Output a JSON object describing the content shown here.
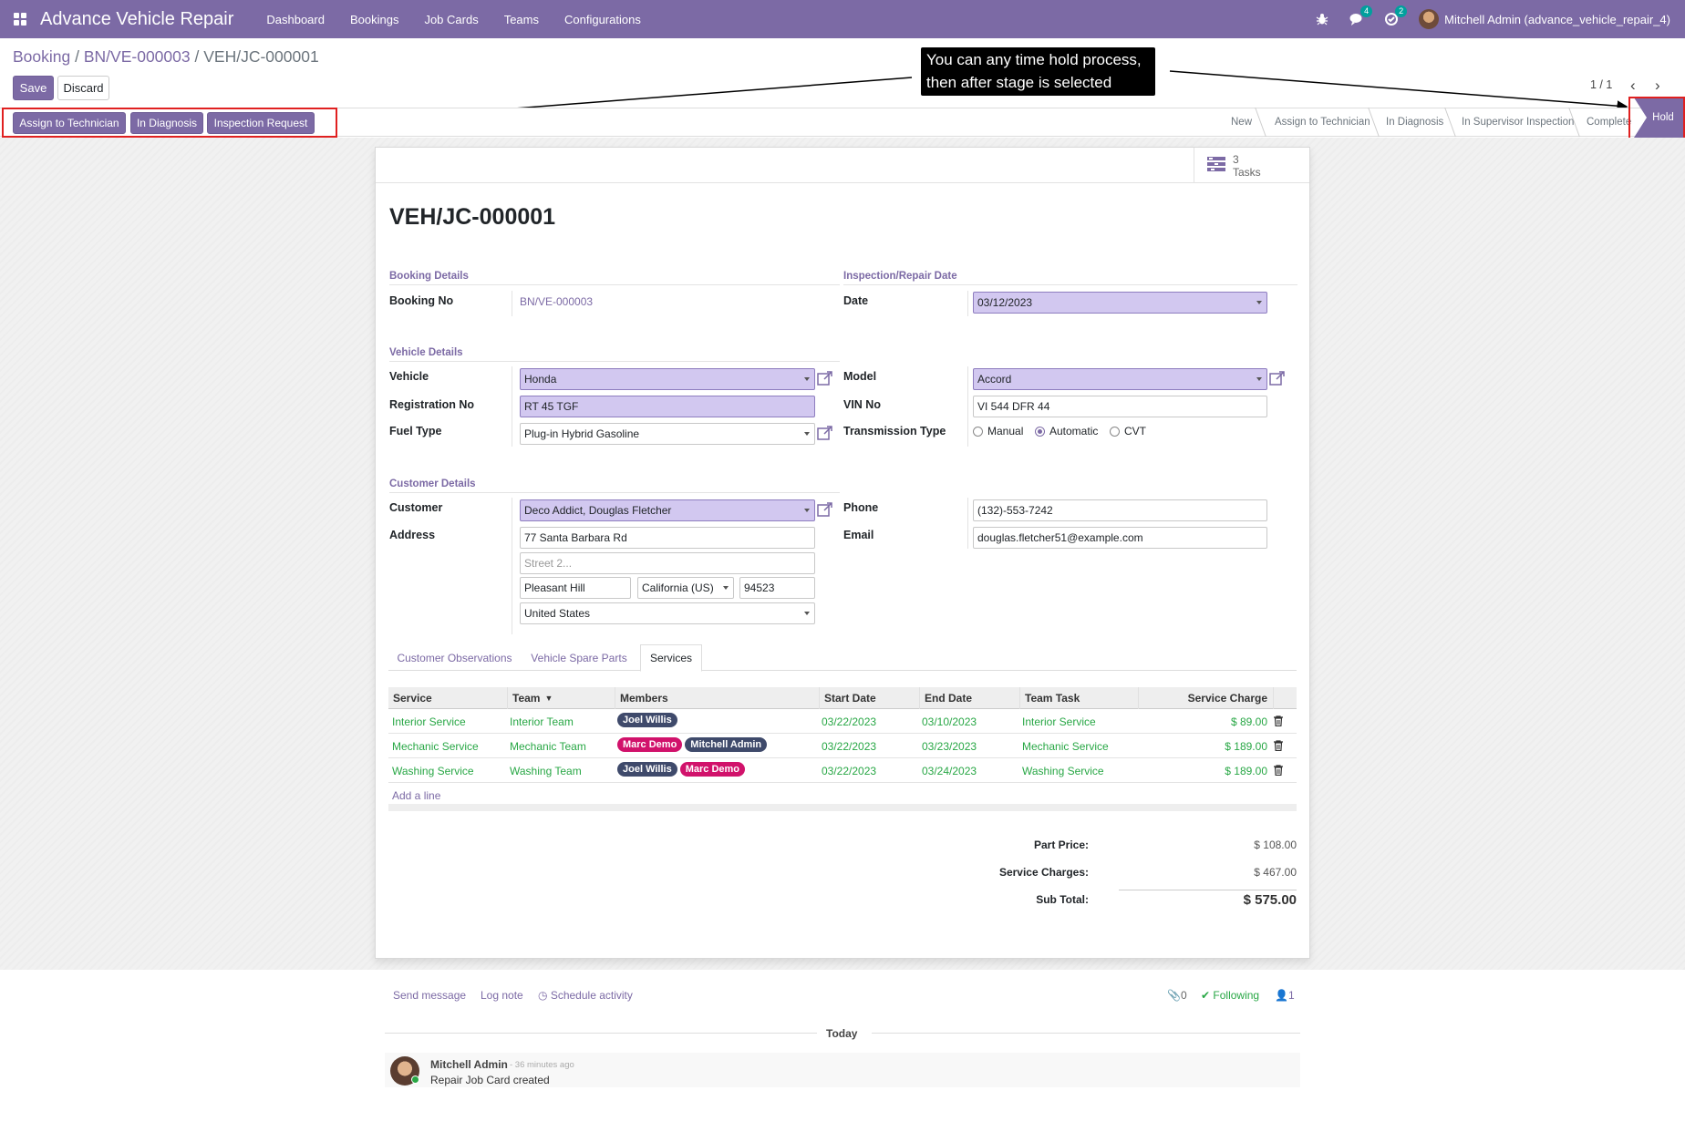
{
  "app": {
    "brand": "Advance Vehicle Repair",
    "menu": [
      "Dashboard",
      "Bookings",
      "Job Cards",
      "Teams",
      "Configurations"
    ],
    "messages_count": "4",
    "activities_count": "2",
    "user": "Mitchell Admin (advance_vehicle_repair_4)"
  },
  "breadcrumb": {
    "root": "Booking",
    "sep": "/",
    "parent": "BN/VE-000003",
    "current": "VEH/JC-000001"
  },
  "actions": {
    "save": "Save",
    "discard": "Discard"
  },
  "header_buttons": [
    "Assign to Technician",
    "In Diagnosis",
    "Inspection Request"
  ],
  "pager": {
    "value": "1 / 1"
  },
  "stages": [
    "New",
    "Assign to Technician",
    "In Diagnosis",
    "In Supervisor Inspection",
    "Complete",
    "Hold"
  ],
  "callout": {
    "line1": "You can any time hold process,",
    "line2": "then after stage is selected"
  },
  "smart_button": {
    "count": "3",
    "label": "Tasks"
  },
  "record": {
    "title": "VEH/JC-000001"
  },
  "sections": {
    "booking": "Booking Details",
    "inspection": "Inspection/Repair Date",
    "vehicle": "Vehicle Details",
    "customer": "Customer Details"
  },
  "labels": {
    "booking_no": "Booking No",
    "date": "Date",
    "vehicle": "Vehicle",
    "model": "Model",
    "registration_no": "Registration No",
    "vin_no": "VIN No",
    "fuel_type": "Fuel Type",
    "transmission": "Transmission Type",
    "customer": "Customer",
    "phone": "Phone",
    "address": "Address",
    "email": "Email"
  },
  "fields": {
    "booking_no": "BN/VE-000003",
    "date": "03/12/2023",
    "vehicle": "Honda",
    "model": "Accord",
    "registration_no": "RT 45 TGF",
    "vin_no": "VI 544 DFR 44",
    "fuel_type": "Plug-in Hybrid Gasoline",
    "customer": "Deco Addict, Douglas Fletcher",
    "phone": "(132)-553-7242",
    "street": "77 Santa Barbara Rd",
    "street2_placeholder": "Street 2...",
    "city": "Pleasant Hill",
    "state": "California (US)",
    "zip": "94523",
    "country": "United States",
    "email": "douglas.fletcher51@example.com"
  },
  "transmission_options": [
    "Manual",
    "Automatic",
    "CVT"
  ],
  "transmission_selected": "Automatic",
  "tabs": [
    "Customer Observations",
    "Vehicle Spare Parts",
    "Services"
  ],
  "services_table": {
    "columns": [
      "Service",
      "Team",
      "Members",
      "Start Date",
      "End Date",
      "Team Task",
      "Service Charge"
    ],
    "rows": [
      {
        "service": "Interior Service",
        "team": "Interior Team",
        "members": [
          "Joel Willis"
        ],
        "start": "03/22/2023",
        "end": "03/10/2023",
        "task": "Interior Service",
        "charge": "$ 89.00"
      },
      {
        "service": "Mechanic Service",
        "team": "Mechanic Team",
        "members": [
          "Marc Demo",
          "Mitchell Admin"
        ],
        "start": "03/22/2023",
        "end": "03/23/2023",
        "task": "Mechanic Service",
        "charge": "$ 189.00"
      },
      {
        "service": "Washing Service",
        "team": "Washing Team",
        "members": [
          "Joel Willis",
          "Marc Demo"
        ],
        "start": "03/22/2023",
        "end": "03/24/2023",
        "task": "Washing Service",
        "charge": "$ 189.00"
      }
    ],
    "add_line": "Add a line"
  },
  "tag_colors": {
    "Joel Willis": "#3f4a6b",
    "Marc Demo": "#d1126b",
    "Mitchell Admin": "#3f4a6b"
  },
  "totals": {
    "part_price_label": "Part Price:",
    "part_price": "$ 108.00",
    "service_charges_label": "Service Charges:",
    "service_charges": "$ 467.00",
    "sub_total_label": "Sub Total:",
    "sub_total": "$ 575.00"
  },
  "chatter": {
    "send_message": "Send message",
    "log_note": "Log note",
    "schedule_activity": "Schedule activity",
    "attachments": "0",
    "following": "Following",
    "followers": "1",
    "today": "Today",
    "author": "Mitchell Admin",
    "time": "- 36 minutes ago",
    "body": "Repair Job Card created"
  }
}
